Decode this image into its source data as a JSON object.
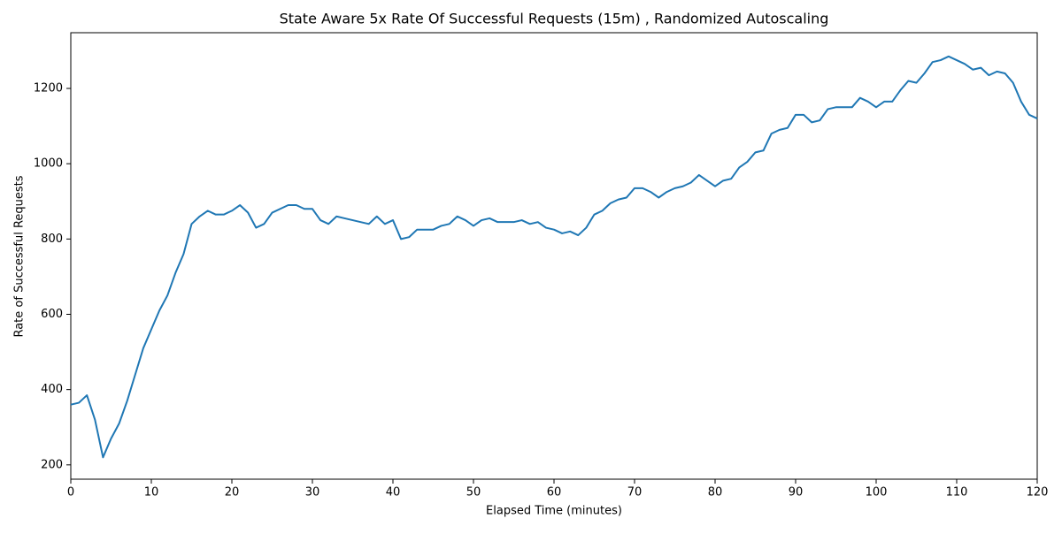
{
  "chart_data": {
    "type": "line",
    "title": "State Aware 5x Rate Of Successful Requests (15m) , Randomized Autoscaling",
    "xlabel": "Elapsed Time (minutes)",
    "ylabel": "Rate of Successful Requests",
    "x": [
      0,
      1,
      2,
      3,
      4,
      5,
      6,
      7,
      8,
      9,
      10,
      11,
      12,
      13,
      14,
      15,
      16,
      17,
      18,
      19,
      20,
      21,
      22,
      23,
      24,
      25,
      26,
      27,
      28,
      29,
      30,
      31,
      32,
      33,
      34,
      35,
      36,
      37,
      38,
      39,
      40,
      41,
      42,
      43,
      44,
      45,
      46,
      47,
      48,
      49,
      50,
      51,
      52,
      53,
      54,
      55,
      56,
      57,
      58,
      59,
      60,
      61,
      62,
      63,
      64,
      65,
      66,
      67,
      68,
      69,
      70,
      71,
      72,
      73,
      74,
      75,
      76,
      77,
      78,
      79,
      80,
      81,
      82,
      83,
      84,
      85,
      86,
      87,
      88,
      89,
      90,
      91,
      92,
      93,
      94,
      95,
      96,
      97,
      98,
      99,
      100,
      101,
      102,
      103,
      104,
      105,
      106,
      107,
      108,
      109,
      110,
      111,
      112,
      113,
      114,
      115,
      116,
      117,
      118,
      119,
      120
    ],
    "series": [
      {
        "name": "Rate of Successful Requests",
        "color": "#1f77b4",
        "values": [
          360,
          365,
          385,
          320,
          220,
          270,
          310,
          370,
          440,
          510,
          560,
          610,
          650,
          710,
          760,
          840,
          860,
          875,
          865,
          865,
          875,
          890,
          870,
          830,
          840,
          870,
          880,
          890,
          890,
          880,
          880,
          850,
          840,
          860,
          855,
          850,
          845,
          840,
          860,
          840,
          850,
          800,
          805,
          825,
          825,
          825,
          835,
          840,
          860,
          850,
          835,
          850,
          855,
          845,
          845,
          845,
          850,
          840,
          845,
          830,
          825,
          815,
          820,
          810,
          830,
          865,
          875,
          895,
          905,
          910,
          935,
          935,
          925,
          910,
          925,
          935,
          940,
          950,
          970,
          955,
          940,
          955,
          960,
          990,
          1005,
          1030,
          1035,
          1080,
          1090,
          1095,
          1130,
          1130,
          1110,
          1115,
          1145,
          1150,
          1150,
          1150,
          1175,
          1165,
          1150,
          1165,
          1165,
          1195,
          1220,
          1215,
          1240,
          1270,
          1275,
          1285,
          1275,
          1265,
          1250,
          1255,
          1235,
          1245,
          1240,
          1215,
          1165,
          1130,
          1120
        ]
      }
    ],
    "xlim": [
      0,
      120
    ],
    "xticks": [
      0,
      10,
      20,
      30,
      40,
      50,
      60,
      70,
      80,
      90,
      100,
      110,
      120
    ],
    "ylim": [
      162,
      1348
    ],
    "yticks": [
      200,
      400,
      600,
      800,
      1000,
      1200
    ]
  }
}
